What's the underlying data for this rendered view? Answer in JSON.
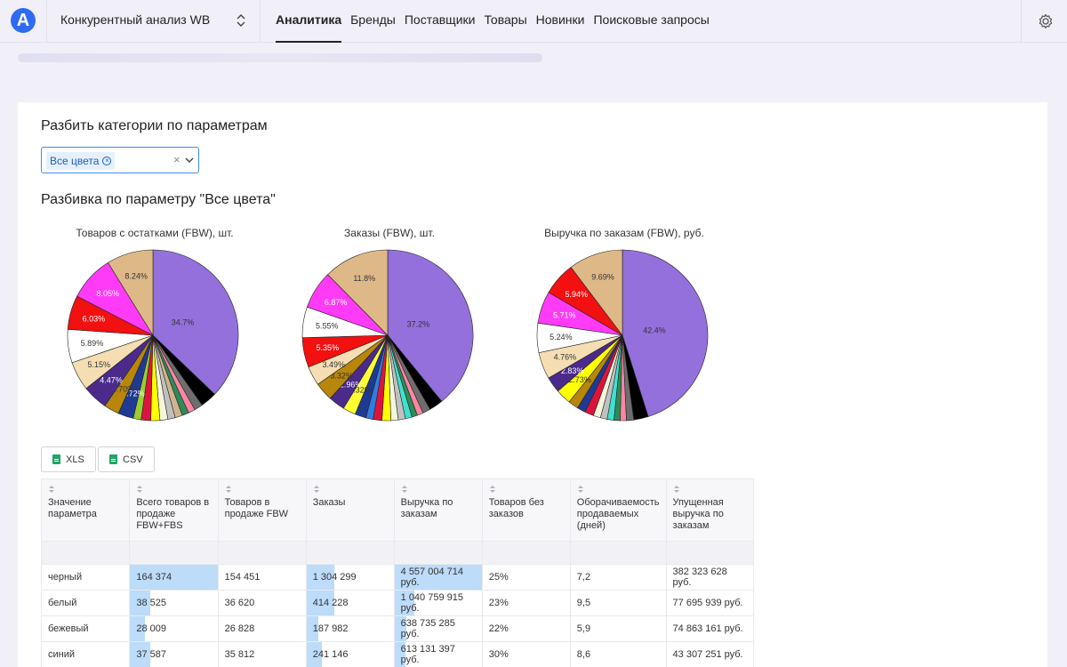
{
  "header": {
    "logo_letter": "A",
    "project": "Конкурентный анализ WB",
    "nav": [
      {
        "label": "Аналитика",
        "active": true
      },
      {
        "label": "Бренды"
      },
      {
        "label": "Поставщики"
      },
      {
        "label": "Товары"
      },
      {
        "label": "Новинки"
      },
      {
        "label": "Поисковые запросы"
      }
    ]
  },
  "split": {
    "title": "Разбить категории по параметрам",
    "selected_chip": "Все цвета",
    "clear_symbol": "×"
  },
  "breakdown_title": "Разбивка по параметру \"Все цвета\"",
  "chart_data": [
    {
      "type": "pie",
      "title": "Товаров с остатками (FBW), шт.",
      "slices": [
        {
          "label": "34.7%",
          "value": 34.7,
          "color": "#9370db"
        },
        {
          "label": "",
          "value": 2.9,
          "color": "#000000"
        },
        {
          "label": "",
          "value": 1.5,
          "color": "#6e6e6e"
        },
        {
          "label": "",
          "value": 1.2,
          "color": "#ff85a3"
        },
        {
          "label": "",
          "value": 1.2,
          "color": "#2e8b57"
        },
        {
          "label": "",
          "value": 1.3,
          "color": "#d2b48c"
        },
        {
          "label": "",
          "value": 1.3,
          "color": "#c0c0c0"
        },
        {
          "label": "",
          "value": 1.4,
          "color": "#f5f5dc"
        },
        {
          "label": "",
          "value": 1.6,
          "color": "#ffff00"
        },
        {
          "label": "",
          "value": 1.7,
          "color": "#dc143c"
        },
        {
          "label": "",
          "value": 1.4,
          "color": "#9acd32"
        },
        {
          "label": "2.72%",
          "value": 2.72,
          "color": "#1f3a93"
        },
        {
          "label": "2.70%",
          "value": 2.7,
          "color": "#b8860b"
        },
        {
          "label": "4.47%",
          "value": 4.47,
          "color": "#4b2a8c"
        },
        {
          "label": "5.15%",
          "value": 5.15,
          "color": "#f5deb3"
        },
        {
          "label": "5.89%",
          "value": 5.89,
          "color": "#ffffff"
        },
        {
          "label": "6.03%",
          "value": 6.03,
          "color": "#f21010"
        },
        {
          "label": "8.05%",
          "value": 8.05,
          "color": "#ff3bf7"
        },
        {
          "label": "8.24%",
          "value": 8.24,
          "color": "#deb887"
        }
      ]
    },
    {
      "type": "pie",
      "title": "Заказы (FBW), шт.",
      "slices": [
        {
          "label": "37.2%",
          "value": 37.2,
          "color": "#9370db"
        },
        {
          "label": "",
          "value": 2.5,
          "color": "#000000"
        },
        {
          "label": "",
          "value": 1.4,
          "color": "#6e6e6e"
        },
        {
          "label": "",
          "value": 1.1,
          "color": "#ff85a3"
        },
        {
          "label": "",
          "value": 1.0,
          "color": "#2e8b57"
        },
        {
          "label": "",
          "value": 1.2,
          "color": "#40e0d0"
        },
        {
          "label": "",
          "value": 1.3,
          "color": "#c0c0c0"
        },
        {
          "label": "",
          "value": 1.3,
          "color": "#f5f5dc"
        },
        {
          "label": "",
          "value": 1.6,
          "color": "#ffff00"
        },
        {
          "label": "",
          "value": 1.6,
          "color": "#dc143c"
        },
        {
          "label": "",
          "value": 1.3,
          "color": "#2f7de0"
        },
        {
          "label": "",
          "value": 2.0,
          "color": "#1f3a93"
        },
        {
          "label": "2.32%",
          "value": 2.32,
          "color": "#ffff33"
        },
        {
          "label": "2.96%",
          "value": 2.96,
          "color": "#4b2a8c"
        },
        {
          "label": "3.32%",
          "value": 3.32,
          "color": "#b8860b"
        },
        {
          "label": "3.49%",
          "value": 3.49,
          "color": "#f5deb3"
        },
        {
          "label": "5.35%",
          "value": 5.35,
          "color": "#f21010"
        },
        {
          "label": "5.55%",
          "value": 5.55,
          "color": "#ffffff"
        },
        {
          "label": "6.87%",
          "value": 6.87,
          "color": "#ff3bf7"
        },
        {
          "label": "11.8%",
          "value": 11.8,
          "color": "#deb887"
        }
      ]
    },
    {
      "type": "pie",
      "title": "Выручка по заказам (FBW), руб.",
      "slices": [
        {
          "label": "42.4%",
          "value": 42.4,
          "color": "#9370db"
        },
        {
          "label": "",
          "value": 2.6,
          "color": "#000000"
        },
        {
          "label": "",
          "value": 1.3,
          "color": "#6e6e6e"
        },
        {
          "label": "",
          "value": 1.1,
          "color": "#ff85a3"
        },
        {
          "label": "",
          "value": 1.1,
          "color": "#2e8b57"
        },
        {
          "label": "",
          "value": 1.2,
          "color": "#40e0d0"
        },
        {
          "label": "",
          "value": 1.2,
          "color": "#c0c0c0"
        },
        {
          "label": "",
          "value": 1.3,
          "color": "#f5f5dc"
        },
        {
          "label": "",
          "value": 1.6,
          "color": "#dc143c"
        },
        {
          "label": "",
          "value": 1.5,
          "color": "#1f3a93"
        },
        {
          "label": "",
          "value": 1.8,
          "color": "#b8860b"
        },
        {
          "label": "2.73%",
          "value": 2.73,
          "color": "#ffff00"
        },
        {
          "label": "2.83%",
          "value": 2.83,
          "color": "#4b2a8c"
        },
        {
          "label": "4.76%",
          "value": 4.76,
          "color": "#f5deb3"
        },
        {
          "label": "5.24%",
          "value": 5.24,
          "color": "#ffffff"
        },
        {
          "label": "5.71%",
          "value": 5.71,
          "color": "#ff3bf7"
        },
        {
          "label": "5.94%",
          "value": 5.94,
          "color": "#f21010"
        },
        {
          "label": "9.69%",
          "value": 9.69,
          "color": "#deb887"
        }
      ]
    }
  ],
  "export": {
    "xls": "XLS",
    "csv": "CSV"
  },
  "table": {
    "headers": [
      "Значение параметра",
      "Всего товаров в продаже FBW+FBS",
      "Товаров в продаже FBW",
      "Заказы",
      "Выручка по заказам",
      "Товаров без заказов",
      "Оборачиваемость продаваемых (дней)",
      "Упущенная выручка по заказам"
    ],
    "rows": [
      [
        "черный",
        "164 374",
        "154 451",
        "1 304 299",
        "4 557 004 714 руб.",
        "25%",
        "7,2",
        "382 323 628 руб."
      ],
      [
        "белый",
        "38 525",
        "36 620",
        "414 228",
        "1 040 759 915 руб.",
        "23%",
        "9,5",
        "77 695 939 руб."
      ],
      [
        "бежевый",
        "28 009",
        "26 828",
        "187 982",
        "638 735 285 руб.",
        "22%",
        "5,9",
        "74 863 161 руб."
      ],
      [
        "синий",
        "37 587",
        "35 812",
        "241 146",
        "613 131 397 руб.",
        "30%",
        "8,6",
        "43 307 251 руб."
      ]
    ],
    "bar_fraction": [
      [
        1.0,
        0.2,
        0.32,
        1.0
      ],
      [
        0.23,
        0.2,
        0.32,
        0.23
      ],
      [
        0.17,
        0.2,
        0.14,
        0.14
      ],
      [
        0.23,
        0.2,
        0.18,
        0.13
      ]
    ]
  }
}
